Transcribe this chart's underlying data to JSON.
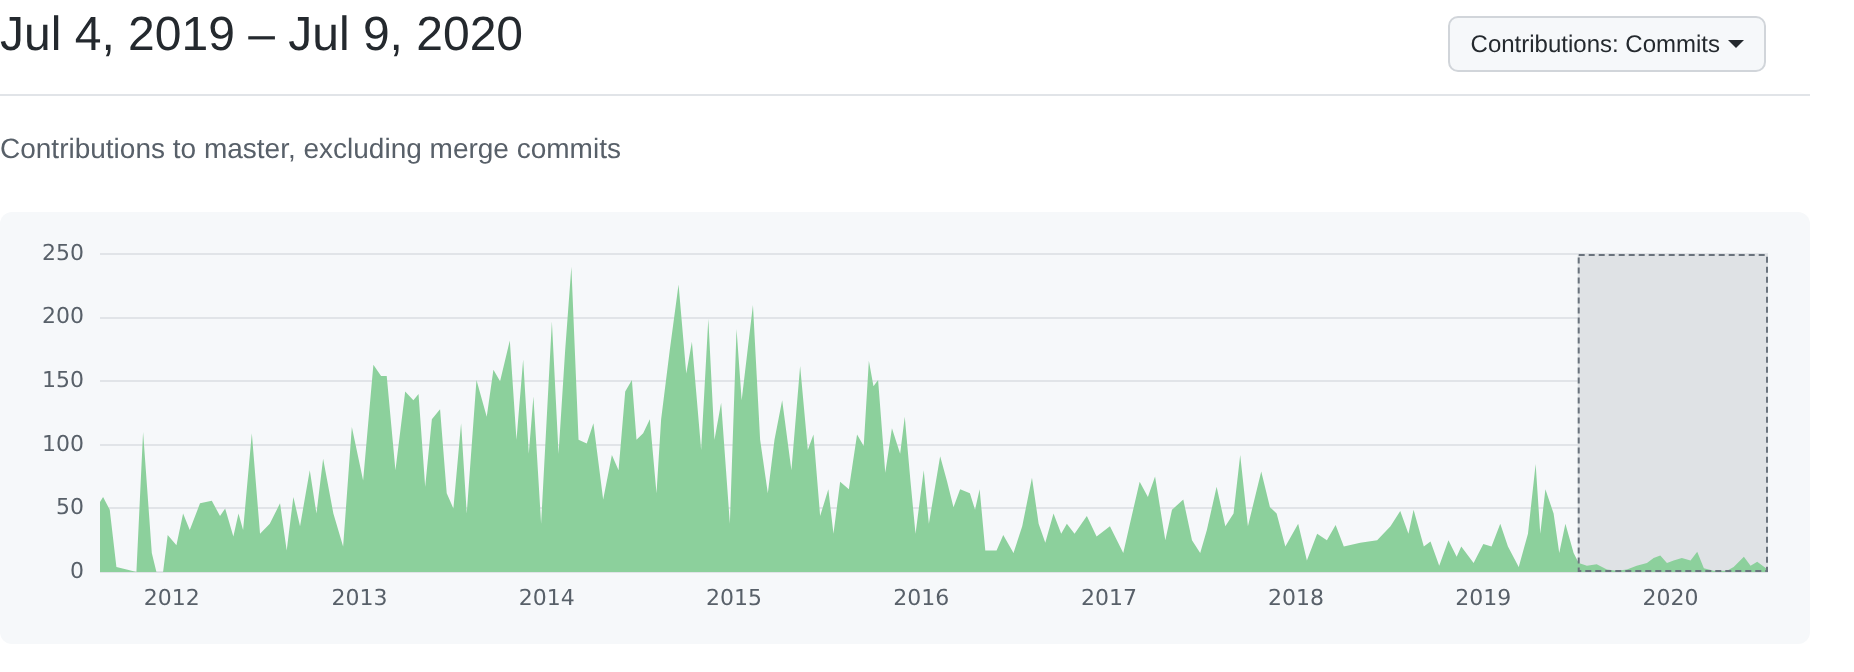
{
  "chart_data": {
    "type": "area",
    "title": "Jul 4, 2019 – Jul 9, 2020",
    "subtitle": "Contributions to master, excluding merge commits",
    "annotations": [
      "Contributions: Commits"
    ],
    "xlim": [
      "2011-08-14",
      "2020-07-09"
    ],
    "xticks": [
      "2012",
      "2013",
      "2014",
      "2015",
      "2016",
      "2017",
      "2018",
      "2019",
      "2020"
    ],
    "ylim": [
      0,
      250
    ],
    "yticks": [
      0,
      50,
      100,
      150,
      200,
      250
    ],
    "grid": "y",
    "legend": false,
    "marker": "none",
    "bands": [
      {
        "axis": "x",
        "from": "2019-07-04",
        "to": "2020-07-09",
        "color": "#dfe2e5"
      }
    ],
    "series": [
      {
        "color": "#8cd09c",
        "x": [
          "2011-08-14",
          "2011-08-20",
          "2011-09-02",
          "2011-09-15",
          "2011-10-05",
          "2011-10-24",
          "2011-11-06",
          "2011-11-23",
          "2011-12-02",
          "2011-12-15",
          "2011-12-24",
          "2012-01-10",
          "2012-01-23",
          "2012-02-05",
          "2012-02-25",
          "2012-03-19",
          "2012-04-04",
          "2012-04-14",
          "2012-04-30",
          "2012-05-10",
          "2012-05-19",
          "2012-06-05",
          "2012-06-21",
          "2012-07-10",
          "2012-07-30",
          "2012-08-12",
          "2012-08-25",
          "2012-09-07",
          "2012-09-26",
          "2012-10-09",
          "2012-10-22",
          "2012-11-11",
          "2012-11-30",
          "2012-12-17",
          "2013-01-08",
          "2013-01-28",
          "2013-02-12",
          "2013-02-23",
          "2013-03-12",
          "2013-03-31",
          "2013-04-16",
          "2013-04-26",
          "2013-05-09",
          "2013-05-22",
          "2013-06-07",
          "2013-06-20",
          "2013-07-03",
          "2013-07-18",
          "2013-07-29",
          "2013-08-17",
          "2013-09-06",
          "2013-09-19",
          "2013-10-02",
          "2013-10-21",
          "2013-11-03",
          "2013-11-16",
          "2013-11-27",
          "2013-12-06",
          "2013-12-21",
          "2014-01-11",
          "2014-01-24",
          "2014-02-06",
          "2014-02-18",
          "2014-03-04",
          "2014-03-20",
          "2014-04-02",
          "2014-04-21",
          "2014-05-08",
          "2014-05-21",
          "2014-06-03",
          "2014-06-16",
          "2014-06-25",
          "2014-07-08",
          "2014-07-21",
          "2014-08-03",
          "2014-08-12",
          "2014-08-29",
          "2014-09-15",
          "2014-09-30",
          "2014-10-11",
          "2014-10-29",
          "2014-11-12",
          "2014-11-24",
          "2014-12-07",
          "2014-12-24",
          "2015-01-06",
          "2015-01-16",
          "2015-02-07",
          "2015-02-21",
          "2015-03-08",
          "2015-03-21",
          "2015-04-05",
          "2015-04-23",
          "2015-05-10",
          "2015-05-25",
          "2015-06-05",
          "2015-06-18",
          "2015-07-04",
          "2015-07-14",
          "2015-07-27",
          "2015-08-13",
          "2015-08-29",
          "2015-09-11",
          "2015-09-21",
          "2015-09-30",
          "2015-10-09",
          "2015-10-23",
          "2015-11-05",
          "2015-11-21",
          "2015-11-30",
          "2015-12-11",
          "2015-12-21",
          "2016-01-06",
          "2016-01-16",
          "2016-02-07",
          "2016-02-20",
          "2016-03-04",
          "2016-03-17",
          "2016-04-05",
          "2016-04-15",
          "2016-04-24",
          "2016-05-05",
          "2016-05-27",
          "2016-06-09",
          "2016-06-29",
          "2016-07-16",
          "2016-08-04",
          "2016-08-17",
          "2016-08-30",
          "2016-09-15",
          "2016-09-30",
          "2016-10-11",
          "2016-10-26",
          "2016-11-19",
          "2016-12-08",
          "2017-01-03",
          "2017-01-29",
          "2017-02-11",
          "2017-03-02",
          "2017-03-18",
          "2017-04-01",
          "2017-04-21",
          "2017-05-04",
          "2017-05-26",
          "2017-06-12",
          "2017-06-28",
          "2017-07-11",
          "2017-07-30",
          "2017-08-16",
          "2017-09-01",
          "2017-09-14",
          "2017-09-29",
          "2017-10-25",
          "2017-11-11",
          "2017-11-24",
          "2017-12-11",
          "2018-01-05",
          "2018-01-22",
          "2018-02-11",
          "2018-03-02",
          "2018-03-19",
          "2018-04-04",
          "2018-05-06",
          "2018-06-08",
          "2018-07-04",
          "2018-07-23",
          "2018-08-08",
          "2018-08-18",
          "2018-09-07",
          "2018-09-20",
          "2018-10-07",
          "2018-10-25",
          "2018-11-10",
          "2018-11-19",
          "2018-12-13",
          "2019-01-01",
          "2019-01-17",
          "2019-02-03",
          "2019-02-18",
          "2019-03-11",
          "2019-03-29",
          "2019-04-13",
          "2019-04-22",
          "2019-05-02",
          "2019-05-18",
          "2019-05-29",
          "2019-06-10",
          "2019-06-26",
          "2019-07-06",
          "2019-07-22",
          "2019-08-10",
          "2019-08-30",
          "2019-09-18",
          "2019-10-08",
          "2019-10-27",
          "2019-11-16",
          "2019-11-29",
          "2019-12-12",
          "2019-12-25",
          "2020-01-07",
          "2020-01-23",
          "2020-02-09",
          "2020-02-22",
          "2020-03-06",
          "2020-03-25",
          "2020-04-20",
          "2020-05-03",
          "2020-05-23",
          "2020-06-05",
          "2020-06-18",
          "2020-07-05",
          "2020-07-09"
        ],
        "values": [
          55,
          59,
          49,
          4,
          2,
          0,
          110,
          15,
          0,
          0,
          29,
          21,
          46,
          33,
          54,
          56,
          44,
          50,
          28,
          46,
          33,
          109,
          30,
          38,
          54,
          17,
          59,
          36,
          80,
          46,
          89,
          46,
          20,
          114,
          72,
          163,
          154,
          154,
          80,
          142,
          135,
          140,
          67,
          120,
          128,
          62,
          50,
          117,
          46,
          151,
          122,
          159,
          150,
          182,
          104,
          167,
          93,
          138,
          38,
          197,
          93,
          175,
          240,
          104,
          101,
          117,
          57,
          92,
          80,
          142,
          151,
          104,
          109,
          120,
          62,
          120,
          175,
          226,
          156,
          181,
          96,
          199,
          104,
          133,
          38,
          191,
          135,
          210,
          104,
          62,
          104,
          135,
          80,
          162,
          96,
          108,
          44,
          65,
          30,
          71,
          65,
          108,
          99,
          166,
          146,
          151,
          78,
          113,
          93,
          122,
          72,
          30,
          80,
          38,
          91,
          72,
          51,
          65,
          62,
          49,
          65,
          17,
          17,
          29,
          15,
          36,
          74,
          38,
          23,
          46,
          30,
          38,
          30,
          44,
          28,
          36,
          15,
          38,
          71,
          59,
          75,
          25,
          49,
          57,
          25,
          15,
          33,
          67,
          36,
          46,
          92,
          36,
          79,
          51,
          46,
          20,
          38,
          9,
          30,
          25,
          37,
          20,
          23,
          25,
          36,
          48,
          30,
          49,
          20,
          24,
          5,
          25,
          12,
          20,
          7,
          22,
          20,
          38,
          20,
          4,
          30,
          85,
          30,
          65,
          46,
          15,
          38,
          15,
          7,
          5,
          6,
          2,
          1,
          2,
          5,
          7,
          11,
          13,
          7,
          9,
          11,
          9,
          16,
          3,
          1,
          1,
          4,
          12,
          5,
          8,
          3,
          2
        ]
      }
    ]
  }
}
